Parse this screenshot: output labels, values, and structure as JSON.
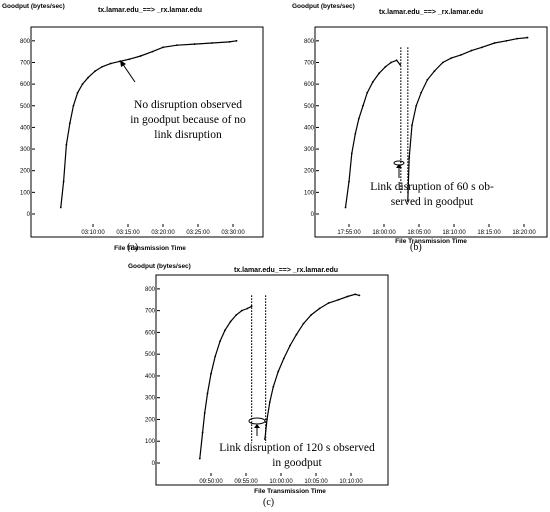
{
  "chart_data": [
    {
      "id": "a",
      "type": "line",
      "caption": "(a)",
      "title": "tx.lamar.edu_==> _rx.lamar.edu",
      "ylabel": "Goodput (bytes/sec)",
      "xlabel": "File Transmission Time",
      "x_ticks": [
        "03:10:00",
        "03:15:00",
        "03:20:00",
        "03:25:00",
        "03:30:00"
      ],
      "x_tick_minutes": [
        10,
        15,
        20,
        25,
        30
      ],
      "y_ticks": [
        0,
        100,
        200,
        300,
        400,
        500,
        600,
        700,
        800
      ],
      "xlim_minutes": [
        3,
        33
      ],
      "ylim": [
        0,
        850
      ],
      "annotation": [
        "No disruption observed",
        "in goodput because of no",
        "link disruption"
      ],
      "series": [
        {
          "segments": [
            [
              [
                5.4,
                30
              ],
              [
                5.8,
                150
              ],
              [
                6.2,
                320
              ],
              [
                6.7,
                420
              ],
              [
                7.2,
                500
              ],
              [
                7.8,
                560
              ],
              [
                8.5,
                600
              ],
              [
                9.3,
                630
              ],
              [
                10.3,
                660
              ],
              [
                11.3,
                680
              ],
              [
                12.5,
                695
              ],
              [
                13.8,
                705
              ],
              [
                15.2,
                715
              ],
              [
                16.8,
                730
              ],
              [
                18.5,
                750
              ],
              [
                20.0,
                770
              ],
              [
                22.0,
                780
              ],
              [
                24.5,
                785
              ],
              [
                27.0,
                790
              ],
              [
                29.5,
                795
              ],
              [
                30.5,
                800
              ]
            ]
          ]
        }
      ]
    },
    {
      "id": "b",
      "type": "line",
      "caption": "(b)",
      "title": "tx.lamar.edu_==> _rx.lamar.edu",
      "ylabel": "Goodput (bytes/sec)",
      "xlabel": "File Transmission Time",
      "x_ticks": [
        "17:55:00",
        "18:00:00",
        "18:05:00",
        "18:10:00",
        "18:15:00",
        "18:20:00"
      ],
      "x_tick_minutes": [
        55,
        60,
        65,
        70,
        75,
        80
      ],
      "y_ticks": [
        0,
        100,
        200,
        300,
        400,
        500,
        600,
        700,
        800
      ],
      "xlim_minutes": [
        52,
        82
      ],
      "ylim": [
        0,
        850
      ],
      "disruption_minutes": [
        62.4,
        63.4
      ],
      "annotation": [
        "Link disruption of 60 s ob-",
        "served in goodput"
      ],
      "series": [
        {
          "segments": [
            [
              [
                54.5,
                30
              ],
              [
                55.0,
                150
              ],
              [
                55.4,
                280
              ],
              [
                55.9,
                370
              ],
              [
                56.4,
                440
              ],
              [
                57.0,
                500
              ],
              [
                57.6,
                560
              ],
              [
                58.4,
                610
              ],
              [
                59.3,
                650
              ],
              [
                60.2,
                680
              ],
              [
                61.0,
                700
              ],
              [
                61.8,
                710
              ],
              [
                62.3,
                690
              ]
            ],
            [
              [
                63.4,
                60
              ],
              [
                63.6,
                260
              ],
              [
                64.0,
                410
              ],
              [
                64.6,
                500
              ],
              [
                65.3,
                560
              ],
              [
                66.2,
                620
              ],
              [
                67.2,
                660
              ],
              [
                68.4,
                700
              ],
              [
                69.6,
                720
              ],
              [
                71.0,
                735
              ],
              [
                72.5,
                755
              ],
              [
                74.0,
                770
              ],
              [
                75.8,
                790
              ],
              [
                77.5,
                800
              ],
              [
                79.0,
                810
              ],
              [
                80.5,
                815
              ]
            ]
          ]
        }
      ]
    },
    {
      "id": "c",
      "type": "line",
      "caption": "(c)",
      "title": "tx.lamar.edu_==> _rx.lamar.edu",
      "ylabel": "Goodput (bytes/sec)",
      "xlabel": "File Transmission Time",
      "x_ticks": [
        "09:50:00",
        "09:55:00",
        "10:00:00",
        "10:05:00",
        "10:10:00"
      ],
      "x_tick_minutes": [
        50,
        55,
        60,
        65,
        70
      ],
      "y_ticks": [
        0,
        100,
        200,
        300,
        400,
        500,
        600,
        700,
        800
      ],
      "xlim_minutes": [
        44,
        74
      ],
      "ylim": [
        0,
        850
      ],
      "disruption_minutes": [
        55.8,
        57.8
      ],
      "annotation": [
        "Link disruption of 120 s observed",
        "in goodput"
      ],
      "series": [
        {
          "segments": [
            [
              [
                48.4,
                20
              ],
              [
                48.8,
                140
              ],
              [
                49.1,
                230
              ],
              [
                49.5,
                320
              ],
              [
                50.0,
                410
              ],
              [
                50.6,
                490
              ],
              [
                51.3,
                560
              ],
              [
                52.0,
                610
              ],
              [
                52.8,
                650
              ],
              [
                53.6,
                680
              ],
              [
                54.4,
                700
              ],
              [
                55.2,
                710
              ],
              [
                55.8,
                720
              ]
            ],
            [
              [
                57.7,
                110
              ],
              [
                58.0,
                200
              ],
              [
                58.4,
                280
              ],
              [
                58.9,
                350
              ],
              [
                59.6,
                420
              ],
              [
                60.4,
                480
              ],
              [
                61.3,
                540
              ],
              [
                62.2,
                590
              ],
              [
                63.2,
                640
              ],
              [
                64.3,
                680
              ],
              [
                65.5,
                710
              ],
              [
                66.8,
                735
              ],
              [
                68.2,
                750
              ],
              [
                69.5,
                765
              ],
              [
                70.6,
                775
              ],
              [
                71.2,
                770
              ]
            ]
          ]
        }
      ]
    }
  ]
}
